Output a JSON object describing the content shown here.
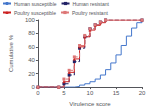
{
  "chart_data": {
    "type": "step",
    "xlabel": "Virulence score",
    "ylabel": "Cumulative %",
    "xlim": [
      0,
      20
    ],
    "ylim": [
      0,
      100
    ],
    "xticks": [
      0,
      5,
      10,
      15,
      20
    ],
    "yticks": [
      0,
      20,
      40,
      60,
      80,
      100
    ],
    "grid": false,
    "legend": "top",
    "series": [
      {
        "name": "Human susceptible",
        "color": "#4477CC",
        "line_style": "solid",
        "marker": "none",
        "x": [
          0,
          5,
          6,
          7,
          8,
          9,
          10,
          11,
          12,
          13,
          14,
          15,
          16,
          17,
          18,
          19,
          20
        ],
        "values": [
          0,
          0,
          0,
          1,
          3,
          5,
          8,
          12,
          18,
          26,
          36,
          48,
          62,
          76,
          88,
          96,
          100
        ]
      },
      {
        "name": "Human resistant",
        "color": "#222266",
        "line_style": "dashed",
        "marker": "square",
        "x": [
          0,
          4,
          5,
          6,
          7,
          8,
          9,
          10,
          11,
          12,
          13,
          20
        ],
        "values": [
          0,
          0,
          5,
          18,
          38,
          58,
          75,
          87,
          93,
          97,
          100,
          100
        ]
      },
      {
        "name": "Poultry susceptible",
        "color": "#CC2222",
        "line_style": "solid",
        "marker": "triangle",
        "x": [
          0,
          4,
          5,
          6,
          7,
          8,
          9,
          10,
          11,
          12,
          13,
          20
        ],
        "values": [
          0,
          0,
          8,
          22,
          42,
          60,
          75,
          85,
          92,
          96,
          100,
          100
        ]
      },
      {
        "name": "Poultry resistant",
        "color": "#DD7777",
        "line_style": "dashed",
        "marker": "square",
        "x": [
          0,
          4,
          5,
          6,
          7,
          8,
          9,
          10,
          11,
          12,
          13,
          20
        ],
        "values": [
          0,
          0,
          12,
          25,
          45,
          62,
          77,
          87,
          93,
          97,
          100,
          100
        ]
      }
    ]
  }
}
